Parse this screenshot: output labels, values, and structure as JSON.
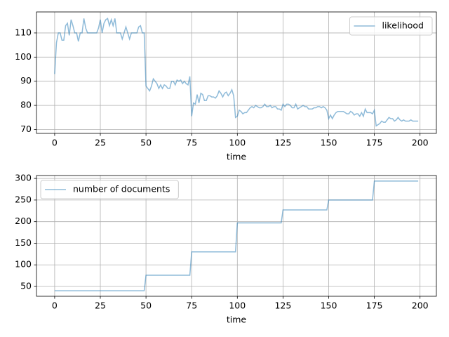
{
  "chart_data": [
    {
      "type": "line",
      "xlabel": "time",
      "legend": "upper right",
      "grid": true,
      "xlim": [
        -9.95,
        208.95
      ],
      "ylim": [
        68.4,
        118.7
      ],
      "xticks": [
        0,
        25,
        50,
        75,
        100,
        125,
        150,
        175,
        200
      ],
      "yticks": [
        70,
        80,
        90,
        100,
        110
      ],
      "x": [
        0,
        1,
        2,
        3,
        4,
        5,
        6,
        7,
        8,
        9,
        10,
        11,
        12,
        13,
        14,
        15,
        16,
        17,
        18,
        19,
        20,
        21,
        22,
        23,
        24,
        25,
        26,
        27,
        28,
        29,
        30,
        31,
        32,
        33,
        34,
        35,
        36,
        37,
        38,
        39,
        40,
        41,
        42,
        43,
        44,
        45,
        46,
        47,
        48,
        49,
        50,
        51,
        52,
        53,
        54,
        55,
        56,
        57,
        58,
        59,
        60,
        61,
        62,
        63,
        64,
        65,
        66,
        67,
        68,
        69,
        70,
        71,
        72,
        73,
        74,
        75,
        76,
        77,
        78,
        79,
        80,
        81,
        82,
        83,
        84,
        85,
        86,
        87,
        88,
        89,
        90,
        91,
        92,
        93,
        94,
        95,
        96,
        97,
        98,
        99,
        100,
        101,
        102,
        103,
        104,
        105,
        106,
        107,
        108,
        109,
        110,
        111,
        112,
        113,
        114,
        115,
        116,
        117,
        118,
        119,
        120,
        121,
        122,
        123,
        124,
        125,
        126,
        127,
        128,
        129,
        130,
        131,
        132,
        133,
        134,
        135,
        136,
        137,
        138,
        139,
        140,
        141,
        142,
        143,
        144,
        145,
        146,
        147,
        148,
        149,
        150,
        151,
        152,
        153,
        154,
        155,
        156,
        157,
        158,
        159,
        160,
        161,
        162,
        163,
        164,
        165,
        166,
        167,
        168,
        169,
        170,
        171,
        172,
        173,
        174,
        175,
        176,
        177,
        178,
        179,
        180,
        181,
        182,
        183,
        184,
        185,
        186,
        187,
        188,
        189,
        190,
        191,
        192,
        193,
        194,
        195,
        196,
        197,
        198,
        199
      ],
      "series": [
        {
          "name": "likelihood",
          "color": "#1f77b4",
          "alpha": 0.5,
          "values": [
            93,
            106,
            110,
            110,
            107,
            107,
            113,
            114,
            109,
            115.5,
            113,
            110,
            110,
            106.5,
            110,
            110,
            116,
            112,
            110,
            110,
            110,
            110,
            110,
            110,
            112,
            115.5,
            110,
            114,
            115.5,
            116,
            113,
            115.5,
            113,
            116,
            110,
            110,
            110,
            107.5,
            110,
            112.5,
            110,
            107.5,
            110,
            110,
            110,
            110,
            112.5,
            113,
            110,
            110,
            88,
            87,
            86,
            88,
            91,
            90,
            89,
            87,
            88.5,
            87,
            88.5,
            88,
            87,
            87,
            90,
            90,
            88.5,
            90.5,
            90,
            90.5,
            89,
            90,
            89,
            88.5,
            92,
            75.5,
            81,
            80.5,
            84.5,
            81,
            85,
            84.5,
            82,
            82,
            84,
            84,
            83.5,
            83.5,
            83,
            84,
            86,
            85,
            83.5,
            85,
            85.5,
            84,
            85,
            86.5,
            84,
            75,
            75.5,
            78,
            77.5,
            76.5,
            77,
            77,
            78,
            79,
            79.5,
            79,
            80,
            79.5,
            79,
            79,
            79.5,
            80.5,
            79.5,
            79.5,
            80,
            79,
            79.5,
            79.5,
            78.5,
            78.5,
            78,
            80.5,
            79.5,
            80.5,
            80.5,
            80,
            79,
            79,
            80.5,
            78.5,
            79,
            79.5,
            80,
            79.5,
            79.5,
            78.5,
            78.5,
            78.5,
            79,
            79,
            79.5,
            79.5,
            79,
            79.5,
            79,
            78,
            74.5,
            76,
            74.5,
            76,
            77,
            77.5,
            77.5,
            77.5,
            77.5,
            77,
            76.5,
            76.5,
            77.5,
            77,
            76,
            76.5,
            76.5,
            75.5,
            77,
            75.5,
            78.5,
            77,
            77,
            77,
            76.5,
            78,
            71.5,
            72,
            72.5,
            73.5,
            73,
            73,
            74,
            75,
            74.5,
            74.5,
            73.5,
            74,
            75,
            74,
            73.5,
            74,
            73.5,
            73.5,
            73.5,
            74,
            73.5,
            73.5,
            73.5,
            73.5
          ]
        }
      ]
    },
    {
      "type": "line",
      "xlabel": "time",
      "legend": "upper left",
      "grid": true,
      "xlim": [
        -9.95,
        208.95
      ],
      "ylim": [
        27.3,
        306.7
      ],
      "xticks": [
        0,
        25,
        50,
        75,
        100,
        125,
        150,
        175,
        200
      ],
      "yticks": [
        50,
        100,
        150,
        200,
        250,
        300
      ],
      "x": [
        0,
        1,
        2,
        3,
        4,
        5,
        6,
        7,
        8,
        9,
        10,
        11,
        12,
        13,
        14,
        15,
        16,
        17,
        18,
        19,
        20,
        21,
        22,
        23,
        24,
        25,
        26,
        27,
        28,
        29,
        30,
        31,
        32,
        33,
        34,
        35,
        36,
        37,
        38,
        39,
        40,
        41,
        42,
        43,
        44,
        45,
        46,
        47,
        48,
        49,
        50,
        51,
        52,
        53,
        54,
        55,
        56,
        57,
        58,
        59,
        60,
        61,
        62,
        63,
        64,
        65,
        66,
        67,
        68,
        69,
        70,
        71,
        72,
        73,
        74,
        75,
        76,
        77,
        78,
        79,
        80,
        81,
        82,
        83,
        84,
        85,
        86,
        87,
        88,
        89,
        90,
        91,
        92,
        93,
        94,
        95,
        96,
        97,
        98,
        99,
        100,
        101,
        102,
        103,
        104,
        105,
        106,
        107,
        108,
        109,
        110,
        111,
        112,
        113,
        114,
        115,
        116,
        117,
        118,
        119,
        120,
        121,
        122,
        123,
        124,
        125,
        126,
        127,
        128,
        129,
        130,
        131,
        132,
        133,
        134,
        135,
        136,
        137,
        138,
        139,
        140,
        141,
        142,
        143,
        144,
        145,
        146,
        147,
        148,
        149,
        150,
        151,
        152,
        153,
        154,
        155,
        156,
        157,
        158,
        159,
        160,
        161,
        162,
        163,
        164,
        165,
        166,
        167,
        168,
        169,
        170,
        171,
        172,
        173,
        174,
        175,
        176,
        177,
        178,
        179,
        180,
        181,
        182,
        183,
        184,
        185,
        186,
        187,
        188,
        189,
        190,
        191,
        192,
        193,
        194,
        195,
        196,
        197,
        198,
        199
      ],
      "series": [
        {
          "name": "number of documents",
          "color": "#1f77b4",
          "alpha": 0.5,
          "values": [
            40,
            40,
            40,
            40,
            40,
            40,
            40,
            40,
            40,
            40,
            40,
            40,
            40,
            40,
            40,
            40,
            40,
            40,
            40,
            40,
            40,
            40,
            40,
            40,
            40,
            40,
            40,
            40,
            40,
            40,
            40,
            40,
            40,
            40,
            40,
            40,
            40,
            40,
            40,
            40,
            40,
            40,
            40,
            40,
            40,
            40,
            40,
            40,
            40,
            40,
            76,
            76,
            76,
            76,
            76,
            76,
            76,
            76,
            76,
            76,
            76,
            76,
            76,
            76,
            76,
            76,
            76,
            76,
            76,
            76,
            76,
            76,
            76,
            76,
            76,
            130,
            130,
            130,
            130,
            130,
            130,
            130,
            130,
            130,
            130,
            130,
            130,
            130,
            130,
            130,
            130,
            130,
            130,
            130,
            130,
            130,
            130,
            130,
            130,
            130,
            197,
            197,
            197,
            197,
            197,
            197,
            197,
            197,
            197,
            197,
            197,
            197,
            197,
            197,
            197,
            197,
            197,
            197,
            197,
            197,
            197,
            197,
            197,
            197,
            197,
            227,
            227,
            227,
            227,
            227,
            227,
            227,
            227,
            227,
            227,
            227,
            227,
            227,
            227,
            227,
            227,
            227,
            227,
            227,
            227,
            227,
            227,
            227,
            227,
            227,
            250,
            250,
            250,
            250,
            250,
            250,
            250,
            250,
            250,
            250,
            250,
            250,
            250,
            250,
            250,
            250,
            250,
            250,
            250,
            250,
            250,
            250,
            250,
            250,
            250,
            294,
            294,
            294,
            294,
            294,
            294,
            294,
            294,
            294,
            294,
            294,
            294,
            294,
            294,
            294,
            294,
            294,
            294,
            294,
            294,
            294,
            294,
            294,
            294,
            294
          ]
        }
      ]
    }
  ]
}
